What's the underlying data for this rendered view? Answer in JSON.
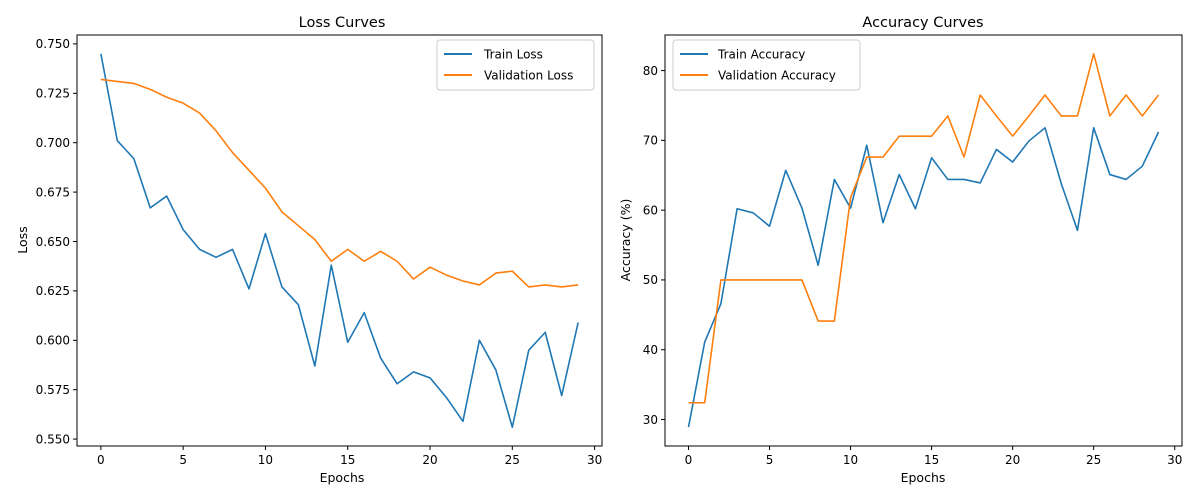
{
  "colors": {
    "train": "#1f77b4",
    "validation": "#ff7f0e"
  },
  "chart_data": [
    {
      "type": "line",
      "title": "Loss Curves",
      "xlabel": "Epochs",
      "ylabel": "Loss",
      "xlim": [
        -1.45,
        30.45
      ],
      "ylim": [
        0.5465,
        0.7545
      ],
      "xticks": [
        0,
        5,
        10,
        15,
        20,
        25,
        30
      ],
      "yticks": [
        0.55,
        0.575,
        0.6,
        0.625,
        0.65,
        0.675,
        0.7,
        0.725,
        0.75
      ],
      "ytick_labels": [
        "0.550",
        "0.575",
        "0.600",
        "0.625",
        "0.650",
        "0.675",
        "0.700",
        "0.725",
        "0.750"
      ],
      "grid": false,
      "legend": "upper right",
      "x": [
        0,
        1,
        2,
        3,
        4,
        5,
        6,
        7,
        8,
        9,
        10,
        11,
        12,
        13,
        14,
        15,
        16,
        17,
        18,
        19,
        20,
        21,
        22,
        23,
        24,
        25,
        26,
        27,
        28,
        29
      ],
      "series": [
        {
          "name": "Train Loss",
          "color": "#1f77b4",
          "values": [
            0.745,
            0.701,
            0.692,
            0.667,
            0.673,
            0.656,
            0.646,
            0.642,
            0.646,
            0.626,
            0.654,
            0.627,
            0.618,
            0.587,
            0.638,
            0.599,
            0.614,
            0.591,
            0.578,
            0.584,
            0.581,
            0.571,
            0.559,
            0.6,
            0.585,
            0.556,
            0.595,
            0.604,
            0.572,
            0.609
          ]
        },
        {
          "name": "Validation Loss",
          "color": "#ff7f0e",
          "values": [
            0.732,
            0.731,
            0.73,
            0.727,
            0.723,
            0.72,
            0.715,
            0.706,
            0.695,
            0.686,
            0.677,
            0.665,
            0.658,
            0.651,
            0.64,
            0.646,
            0.64,
            0.645,
            0.64,
            0.631,
            0.637,
            0.633,
            0.63,
            0.628,
            0.634,
            0.635,
            0.627,
            0.628,
            0.627,
            0.628
          ]
        }
      ]
    },
    {
      "type": "line",
      "title": "Accuracy Curves",
      "xlabel": "Epochs",
      "ylabel": "Accuracy (%)",
      "xlim": [
        -1.45,
        30.45
      ],
      "ylim": [
        26.2,
        85.1
      ],
      "xticks": [
        0,
        5,
        10,
        15,
        20,
        25,
        30
      ],
      "yticks": [
        30,
        40,
        50,
        60,
        70,
        80
      ],
      "ytick_labels": [
        "30",
        "40",
        "50",
        "60",
        "70",
        "80"
      ],
      "grid": false,
      "legend": "upper left",
      "x": [
        0,
        1,
        2,
        3,
        4,
        5,
        6,
        7,
        8,
        9,
        10,
        11,
        12,
        13,
        14,
        15,
        16,
        17,
        18,
        19,
        20,
        21,
        22,
        23,
        24,
        25,
        26,
        27,
        28,
        29
      ],
      "series": [
        {
          "name": "Train Accuracy",
          "color": "#1f77b4",
          "values": [
            28.9,
            41.1,
            46.6,
            60.2,
            59.6,
            57.7,
            65.7,
            60.3,
            52.1,
            64.4,
            60.3,
            69.3,
            58.2,
            65.1,
            60.2,
            67.5,
            64.4,
            64.4,
            63.9,
            68.7,
            66.9,
            69.9,
            71.8,
            63.8,
            57.1,
            71.8,
            65.1,
            64.4,
            66.3,
            71.2
          ]
        },
        {
          "name": "Validation Accuracy",
          "color": "#ff7f0e",
          "values": [
            32.4,
            32.4,
            50.0,
            50.0,
            50.0,
            50.0,
            50.0,
            50.0,
            44.1,
            44.1,
            61.8,
            67.6,
            67.6,
            70.6,
            70.6,
            70.6,
            73.5,
            67.6,
            76.5,
            73.5,
            70.6,
            73.5,
            76.5,
            73.5,
            73.5,
            82.4,
            73.5,
            76.5,
            73.5,
            76.5
          ]
        }
      ]
    }
  ]
}
